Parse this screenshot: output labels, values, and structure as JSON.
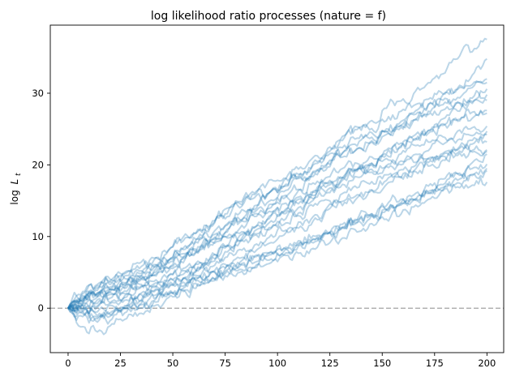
{
  "chart_data": {
    "type": "line",
    "title": "log likelihood ratio processes (nature = f)",
    "xlabel": "",
    "ylabel_base": "log",
    "ylabel_var": "L",
    "ylabel_sub": "t",
    "xlim": [
      -8.5,
      208
    ],
    "ylim": [
      -6.2,
      39.5
    ],
    "xticks": [
      0,
      25,
      50,
      75,
      100,
      125,
      150,
      175,
      200
    ],
    "yticks": [
      0,
      10,
      20,
      30
    ],
    "reference_line": {
      "y": 0,
      "style": "dashed",
      "color": "#b0b0b0"
    },
    "line_color": "#1f77b4",
    "line_alpha": 0.3,
    "grid": false,
    "n_points": 201,
    "x_step": 1,
    "series": [
      {
        "values": [
          0,
          1.5,
          2.8,
          3.6,
          4.6,
          5.2,
          6.1,
          6.9,
          8.4,
          9.8,
          11.7,
          12.8,
          14.2,
          15.9,
          16.3,
          18.1,
          18.8,
          20.4,
          21.8,
          24.0,
          25.3,
          26.2,
          27.9,
          28.9,
          30.3,
          31.5,
          32.8,
          34.8,
          35.8,
          37.5
        ]
      },
      {
        "values": [
          0,
          1.0,
          2.2,
          2.6,
          3.6,
          4.1,
          5.0,
          5.4,
          7.1,
          7.9,
          9.6,
          10.6,
          12.2,
          13.6,
          14.2,
          15.8,
          16.5,
          18.4,
          19.7,
          21.6,
          22.2,
          23.2,
          24.6,
          25.6,
          27.1,
          28.4,
          29.8,
          30.8,
          32.6,
          34.8
        ]
      },
      {
        "values": [
          0,
          2.3,
          3.3,
          4.1,
          4.8,
          6.1,
          6.8,
          8.1,
          10.0,
          11.0,
          12.2,
          13.9,
          14.7,
          16.3,
          17.9,
          18.3,
          19.5,
          21.1,
          22.4,
          23.4,
          24.9,
          25.1,
          26.1,
          27.6,
          28.4,
          29.3,
          29.9,
          30.6,
          31.2,
          32.0
        ]
      },
      {
        "values": [
          0,
          0.8,
          2.0,
          2.5,
          3.2,
          4.5,
          5.7,
          6.7,
          8.2,
          9.7,
          10.2,
          11.8,
          13.8,
          14.3,
          16.2,
          17.1,
          18.4,
          20.1,
          21.3,
          22.4,
          23.7,
          24.5,
          25.0,
          25.9,
          27.3,
          28.7,
          28.9,
          29.4,
          30.8,
          31.5
        ]
      },
      {
        "values": [
          0,
          0.3,
          0.6,
          1.5,
          2.0,
          3.3,
          3.4,
          4.7,
          5.3,
          6.1,
          7.3,
          8.8,
          9.5,
          10.2,
          11.4,
          11.8,
          13.5,
          15.3,
          16.2,
          17.9,
          19.3,
          20.2,
          21.4,
          22.2,
          23.7,
          24.8,
          26.5,
          27.5,
          28.6,
          30.6
        ]
      },
      {
        "values": [
          0,
          1.1,
          1.5,
          2.6,
          2.9,
          3.9,
          5.3,
          6.3,
          7.2,
          8.6,
          9.6,
          11.0,
          12.2,
          13.8,
          15.1,
          16.4,
          18.1,
          19.2,
          20.3,
          21.1,
          22.3,
          23.4,
          24.7,
          25.4,
          26.2,
          27.5,
          28.3,
          28.9,
          29.3,
          29.8
        ]
      },
      {
        "values": [
          0,
          2.0,
          3.2,
          3.7,
          5.1,
          5.6,
          7.0,
          8.1,
          9.4,
          10.7,
          11.5,
          13.1,
          14.3,
          15.7,
          16.3,
          17.2,
          18.4,
          19.1,
          20.3,
          21.7,
          22.6,
          23.9,
          24.3,
          25.2,
          26.4,
          27.1,
          27.7,
          28.6,
          28.8,
          29.0
        ]
      },
      {
        "values": [
          0,
          0.6,
          1.7,
          2.8,
          3.3,
          4.1,
          4.6,
          5.5,
          6.3,
          7.9,
          8.8,
          9.8,
          10.7,
          11.5,
          12.8,
          13.7,
          14.5,
          15.8,
          17.4,
          18.2,
          19.4,
          20.3,
          21.4,
          22.6,
          23.3,
          24.5,
          25.9,
          26.3,
          27.4,
          27.6
        ]
      },
      {
        "values": [
          0,
          1.3,
          2.0,
          3.4,
          4.1,
          4.7,
          5.8,
          6.7,
          7.6,
          9.1,
          10.4,
          11.6,
          12.3,
          13.1,
          14.5,
          15.4,
          16.7,
          17.6,
          18.3,
          19.5,
          20.2,
          21.1,
          22.0,
          23.0,
          24.0,
          24.8,
          25.5,
          26.1,
          26.5,
          27.2
        ]
      },
      {
        "values": [
          0,
          -0.5,
          -1.3,
          -0.8,
          -0.2,
          0.9,
          1.8,
          3.0,
          4.2,
          5.6,
          7.1,
          8.6,
          10.2,
          11.4,
          12.9,
          13.6,
          15.2,
          16.1,
          17.6,
          18.2,
          19.3,
          20.0,
          20.8,
          21.5,
          22.6,
          23.3,
          24.0,
          24.7,
          25.2,
          25.4
        ]
      },
      {
        "values": [
          0,
          0.6,
          1.2,
          1.8,
          2.0,
          2.9,
          3.8,
          4.7,
          5.6,
          6.6,
          7.7,
          8.6,
          9.8,
          11.1,
          12.0,
          13.3,
          14.2,
          15.0,
          16.6,
          17.3,
          18.3,
          19.0,
          19.8,
          20.6,
          21.3,
          22.1,
          22.8,
          23.5,
          24.1,
          24.7
        ]
      },
      {
        "values": [
          0,
          -1.2,
          -2.0,
          -1.6,
          -0.7,
          0.2,
          1.1,
          2.0,
          3.1,
          4.2,
          5.1,
          6.1,
          7.1,
          8.0,
          9.2,
          10.4,
          11.1,
          12.2,
          13.7,
          14.3,
          15.4,
          16.5,
          17.4,
          18.1,
          19.1,
          20.3,
          21.3,
          22.1,
          23.4,
          24.2
        ]
      },
      {
        "values": [
          0,
          -0.3,
          0.1,
          0.9,
          1.3,
          2.3,
          3.0,
          3.8,
          4.8,
          5.8,
          6.5,
          7.8,
          9.4,
          10.2,
          11.1,
          12.4,
          13.0,
          14.2,
          15.1,
          16.0,
          16.8,
          17.7,
          18.6,
          19.4,
          20.0,
          20.9,
          21.6,
          22.2,
          22.9,
          23.2
        ]
      },
      {
        "values": [
          0,
          -0.1,
          -0.6,
          0.2,
          0.4,
          0.9,
          2.4,
          2.8,
          4.2,
          5.2,
          5.8,
          7.1,
          8.0,
          8.9,
          10.2,
          10.9,
          12.1,
          12.8,
          14.2,
          14.9,
          15.8,
          16.5,
          17.8,
          18.4,
          19.4,
          19.9,
          20.8,
          21.3,
          21.8,
          22.1
        ]
      },
      {
        "values": [
          0,
          1.8,
          2.4,
          2.9,
          3.3,
          4.4,
          4.7,
          5.3,
          6.9,
          7.7,
          9.2,
          9.9,
          11.6,
          12.8,
          13.4,
          14.8,
          15.6,
          16.4,
          17.2,
          18.2,
          19.1,
          19.4,
          19.8,
          20.1,
          20.4,
          20.9,
          21.4,
          21.7,
          22.0,
          21.9
        ]
      },
      {
        "values": [
          0,
          -2.5,
          -3.3,
          -2.3,
          -1.6,
          -0.6,
          0.4,
          1.6,
          2.3,
          3.4,
          4.3,
          5.4,
          6.1,
          6.6,
          7.4,
          8.2,
          8.7,
          9.1,
          10.4,
          11.3,
          12.3,
          13.2,
          14.2,
          15.1,
          16.0,
          17.0,
          18.1,
          18.8,
          19.5,
          20.1
        ]
      },
      {
        "values": [
          0,
          -0.7,
          -1.1,
          -0.3,
          0.3,
          0.6,
          1.2,
          2.4,
          2.8,
          3.9,
          4.2,
          5.2,
          5.3,
          6.0,
          6.7,
          7.6,
          8.9,
          9.6,
          10.4,
          11.7,
          12.3,
          13.2,
          13.7,
          14.5,
          15.2,
          15.9,
          16.3,
          16.9,
          17.2,
          17.6
        ]
      },
      {
        "values": [
          0,
          0.9,
          1.6,
          2.1,
          2.4,
          3.0,
          3.3,
          3.8,
          4.2,
          4.5,
          5.1,
          5.9,
          6.3,
          7.3,
          7.9,
          8.6,
          9.4,
          10.2,
          10.4,
          11.3,
          11.9,
          13.0,
          13.8,
          14.5,
          15.3,
          16.4,
          17.3,
          18.8,
          20.3,
          21.5
        ]
      },
      {
        "values": [
          0,
          -0.4,
          -1.5,
          -1.0,
          0.1,
          0.5,
          1.4,
          1.8,
          2.6,
          3.1,
          3.8,
          4.4,
          5.2,
          5.6,
          6.4,
          7.3,
          7.7,
          8.4,
          8.9,
          9.8,
          10.6,
          11.8,
          12.4,
          13.1,
          14.2,
          15.3,
          16.5,
          17.6,
          18.5,
          19.2
        ]
      },
      {
        "values": [
          0,
          0.4,
          0.3,
          0.9,
          1.5,
          2.0,
          2.6,
          3.4,
          3.7,
          4.2,
          5.1,
          5.9,
          6.6,
          7.2,
          7.9,
          8.3,
          9.0,
          9.8,
          10.6,
          11.2,
          12.0,
          12.9,
          13.7,
          14.3,
          15.2,
          16.0,
          16.9,
          17.8,
          18.7,
          19.5
        ]
      }
    ]
  }
}
